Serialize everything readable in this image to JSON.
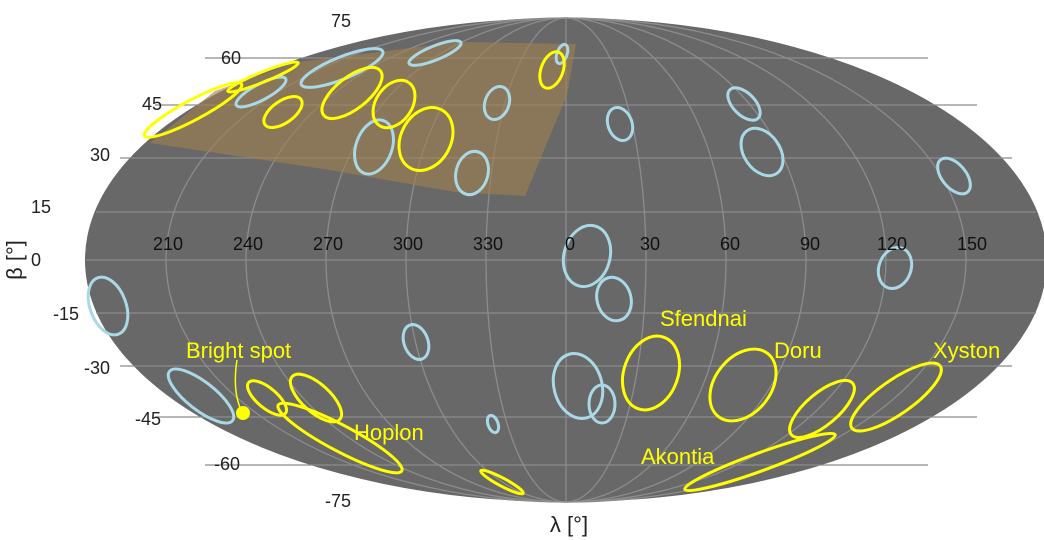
{
  "colors": {
    "background": "#ffffff",
    "globe": "#686868",
    "grid": "#8c8c8c",
    "region_fill": "#a08050",
    "feature_yellow": "#ffff00",
    "feature_blue": "#a9d8e6"
  },
  "axes": {
    "x_label": "λ [°]",
    "y_label": "β [°]"
  },
  "lat_ticks": [
    "75",
    "60",
    "45",
    "30",
    "15",
    "0",
    "-15",
    "-30",
    "-45",
    "-60",
    "-75"
  ],
  "lon_ticks": [
    "210",
    "240",
    "270",
    "300",
    "330",
    "0",
    "30",
    "60",
    "90",
    "120",
    "150"
  ],
  "features": {
    "sfendnai": "Sfendnai",
    "doru": "Doru",
    "xyston": "Xyston",
    "hoplon": "Hoplon",
    "akontia": "Akontia",
    "bright_spot": "Bright spot"
  }
}
